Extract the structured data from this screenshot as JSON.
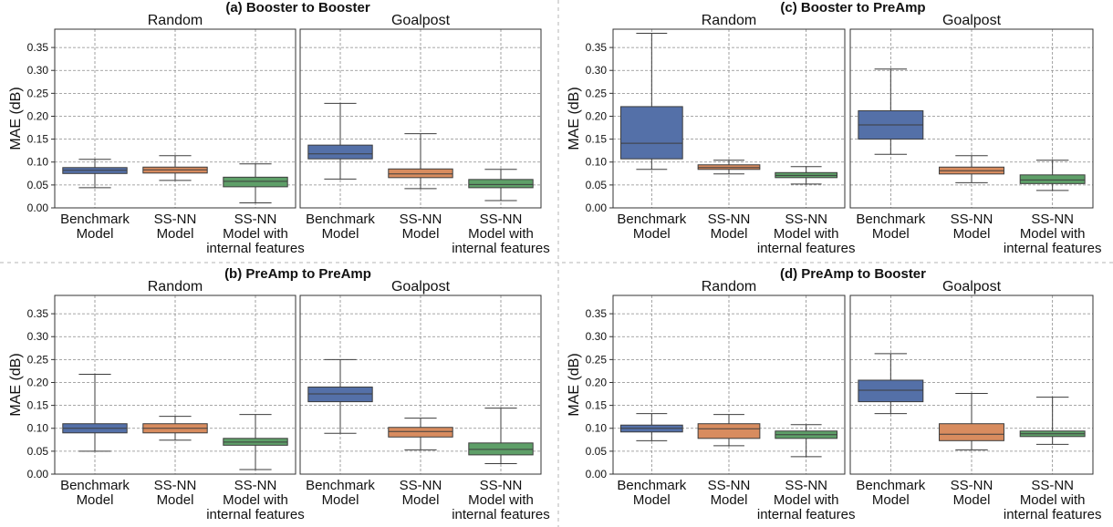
{
  "colors": {
    "benchmark": "#5470a8",
    "ssnn": "#d88c5f",
    "ssnn_internal": "#5e9f68"
  },
  "chart_data": [
    {
      "type": "box",
      "title": "(a) Booster to Booster",
      "ylabel": "MAE (dB)",
      "ylim": [
        0,
        0.39
      ],
      "yticks": [
        "0.00",
        "0.05",
        "0.10",
        "0.15",
        "0.20",
        "0.25",
        "0.30",
        "0.35"
      ],
      "categories": [
        [
          "Benchmark",
          "Model"
        ],
        [
          "SS-NN",
          "Model"
        ],
        [
          "SS-NN",
          "Model with",
          "internal features"
        ]
      ],
      "facets": [
        {
          "name": "Random",
          "boxes": [
            {
              "min": 0.044,
              "q1": 0.075,
              "median": 0.082,
              "q3": 0.088,
              "max": 0.106
            },
            {
              "min": 0.06,
              "q1": 0.076,
              "median": 0.083,
              "q3": 0.089,
              "max": 0.114
            },
            {
              "min": 0.011,
              "q1": 0.046,
              "median": 0.058,
              "q3": 0.067,
              "max": 0.096
            }
          ]
        },
        {
          "name": "Goalpost",
          "boxes": [
            {
              "min": 0.063,
              "q1": 0.107,
              "median": 0.118,
              "q3": 0.137,
              "max": 0.228
            },
            {
              "min": 0.042,
              "q1": 0.066,
              "median": 0.074,
              "q3": 0.085,
              "max": 0.162
            },
            {
              "min": 0.016,
              "q1": 0.044,
              "median": 0.051,
              "q3": 0.062,
              "max": 0.084
            }
          ]
        }
      ]
    },
    {
      "type": "box",
      "title": "(c) Booster to PreAmp",
      "ylabel": "MAE (dB)",
      "ylim": [
        0,
        0.39
      ],
      "yticks": [
        "0.00",
        "0.05",
        "0.10",
        "0.15",
        "0.20",
        "0.25",
        "0.30",
        "0.35"
      ],
      "categories": [
        [
          "Benchmark",
          "Model"
        ],
        [
          "SS-NN",
          "Model"
        ],
        [
          "SS-NN",
          "Model with",
          "internal features"
        ]
      ],
      "facets": [
        {
          "name": "Random",
          "boxes": [
            {
              "min": 0.084,
              "q1": 0.107,
              "median": 0.141,
              "q3": 0.221,
              "max": 0.381
            },
            {
              "min": 0.074,
              "q1": 0.084,
              "median": 0.088,
              "q3": 0.094,
              "max": 0.104
            },
            {
              "min": 0.052,
              "q1": 0.066,
              "median": 0.071,
              "q3": 0.077,
              "max": 0.09
            }
          ]
        },
        {
          "name": "Goalpost",
          "boxes": [
            {
              "min": 0.117,
              "q1": 0.15,
              "median": 0.181,
              "q3": 0.212,
              "max": 0.303
            },
            {
              "min": 0.055,
              "q1": 0.074,
              "median": 0.081,
              "q3": 0.089,
              "max": 0.114
            },
            {
              "min": 0.038,
              "q1": 0.053,
              "median": 0.061,
              "q3": 0.072,
              "max": 0.104
            }
          ]
        }
      ]
    },
    {
      "type": "box",
      "title": "(b) PreAmp to PreAmp",
      "ylabel": "MAE (dB)",
      "ylim": [
        0,
        0.39
      ],
      "yticks": [
        "0.00",
        "0.05",
        "0.10",
        "0.15",
        "0.20",
        "0.25",
        "0.30",
        "0.35"
      ],
      "categories": [
        [
          "Benchmark",
          "Model"
        ],
        [
          "SS-NN",
          "Model"
        ],
        [
          "SS-NN",
          "Model with",
          "internal features"
        ]
      ],
      "facets": [
        {
          "name": "Random",
          "boxes": [
            {
              "min": 0.05,
              "q1": 0.09,
              "median": 0.1,
              "q3": 0.11,
              "max": 0.218
            },
            {
              "min": 0.074,
              "q1": 0.09,
              "median": 0.1,
              "q3": 0.11,
              "max": 0.126
            },
            {
              "min": 0.01,
              "q1": 0.063,
              "median": 0.07,
              "q3": 0.078,
              "max": 0.13
            }
          ]
        },
        {
          "name": "Goalpost",
          "boxes": [
            {
              "min": 0.089,
              "q1": 0.158,
              "median": 0.175,
              "q3": 0.19,
              "max": 0.25
            },
            {
              "min": 0.053,
              "q1": 0.081,
              "median": 0.093,
              "q3": 0.102,
              "max": 0.122
            },
            {
              "min": 0.023,
              "q1": 0.042,
              "median": 0.054,
              "q3": 0.068,
              "max": 0.144
            }
          ]
        }
      ]
    },
    {
      "type": "box",
      "title": "(d) PreAmp to Booster",
      "ylabel": "MAE (dB)",
      "ylim": [
        0,
        0.39
      ],
      "yticks": [
        "0.00",
        "0.05",
        "0.10",
        "0.15",
        "0.20",
        "0.25",
        "0.30",
        "0.35"
      ],
      "categories": [
        [
          "Benchmark",
          "Model"
        ],
        [
          "SS-NN",
          "Model"
        ],
        [
          "SS-NN",
          "Model with",
          "internal features"
        ]
      ],
      "facets": [
        {
          "name": "Random",
          "boxes": [
            {
              "min": 0.073,
              "q1": 0.092,
              "median": 0.1,
              "q3": 0.107,
              "max": 0.132
            },
            {
              "min": 0.062,
              "q1": 0.078,
              "median": 0.099,
              "q3": 0.11,
              "max": 0.13
            },
            {
              "min": 0.038,
              "q1": 0.078,
              "median": 0.086,
              "q3": 0.094,
              "max": 0.108
            }
          ]
        },
        {
          "name": "Goalpost",
          "boxes": [
            {
              "min": 0.132,
              "q1": 0.158,
              "median": 0.183,
              "q3": 0.205,
              "max": 0.263
            },
            {
              "min": 0.053,
              "q1": 0.073,
              "median": 0.087,
              "q3": 0.11,
              "max": 0.176
            },
            {
              "min": 0.065,
              "q1": 0.082,
              "median": 0.088,
              "q3": 0.094,
              "max": 0.168
            }
          ]
        }
      ]
    }
  ]
}
